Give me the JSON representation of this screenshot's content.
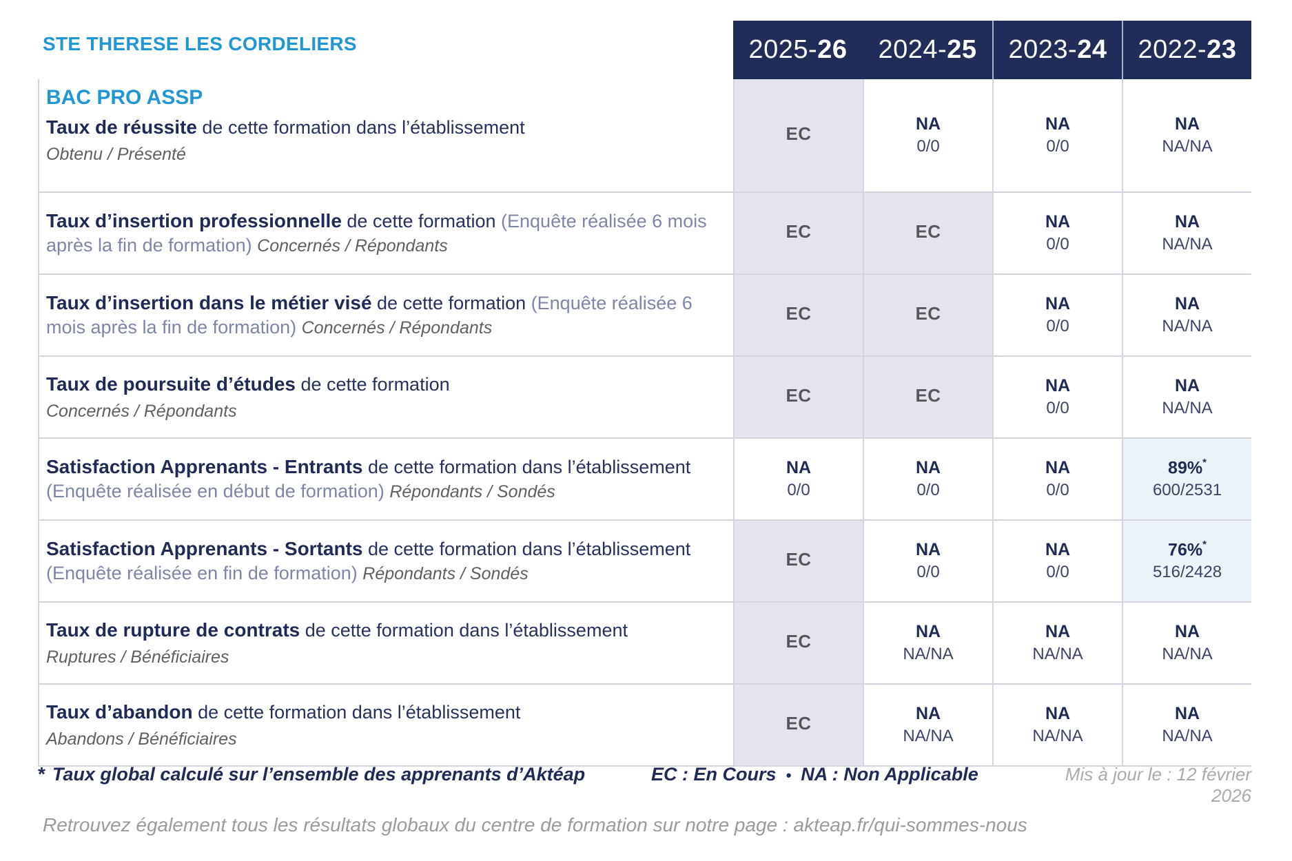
{
  "page": {
    "school_name": "STE THERESE LES CORDELIERS",
    "footnote_star": "*",
    "footnote": "Taux global calculé sur l’ensemble des apprenants d’Aktéap",
    "legend_ec": "EC : En Cours",
    "legend_bullet": "•",
    "legend_na": "NA : Non Applicable",
    "updated": "Mis à jour le : 12 février 2026",
    "footer": "Retrouvez également tous les résultats globaux du centre de formation sur notre page : akteap.fr/qui-sommes-nous"
  },
  "colors": {
    "accent_cyan": "#2196d5",
    "navy": "#1f2a56",
    "header_bg": "#222c58",
    "shaded_cell": "#e5e4ee",
    "pale_blue_cell": "#ebf3f9",
    "ec_text": "#57575a"
  },
  "table": {
    "program": "BAC PRO ASSP",
    "columns": [
      {
        "prefix": "2025-",
        "year": "26"
      },
      {
        "prefix": "2024-",
        "year": "25"
      },
      {
        "prefix": "2023-",
        "year": "24"
      },
      {
        "prefix": "2022-",
        "year": "23"
      }
    ],
    "rows": [
      {
        "title": "Taux de réussite",
        "desc": " de cette formation dans l’établissement",
        "sub": "Obtenu / Présenté",
        "cells": [
          {
            "value": "EC"
          },
          {
            "value": "NA",
            "detail": "0/0"
          },
          {
            "value": "NA",
            "detail": "0/0"
          },
          {
            "value": "NA",
            "detail": "NA/NA"
          }
        ]
      },
      {
        "title": "Taux d’insertion professionnelle",
        "desc": " de cette formation ",
        "paren": "(Enquête réalisée 6 mois après la fin de formation) ",
        "sub": "Concernés / Répondants",
        "cells": [
          {
            "value": "EC"
          },
          {
            "value": "EC"
          },
          {
            "value": "NA",
            "detail": "0/0"
          },
          {
            "value": "NA",
            "detail": "NA/NA"
          }
        ]
      },
      {
        "title": "Taux d’insertion dans le métier visé",
        "desc": " de cette formation ",
        "paren": "(Enquête réalisée 6 mois après la fin de formation) ",
        "sub": "Concernés / Répondants",
        "cells": [
          {
            "value": "EC"
          },
          {
            "value": "EC"
          },
          {
            "value": "NA",
            "detail": "0/0"
          },
          {
            "value": "NA",
            "detail": "NA/NA"
          }
        ]
      },
      {
        "title": "Taux de poursuite d’études",
        "desc": " de cette formation",
        "sub": "Concernés / Répondants",
        "cells": [
          {
            "value": "EC"
          },
          {
            "value": "EC"
          },
          {
            "value": "NA",
            "detail": "0/0"
          },
          {
            "value": "NA",
            "detail": "NA/NA"
          }
        ]
      },
      {
        "title": "Satisfaction Apprenants - Entrants",
        "desc": " de cette formation dans l’établissement ",
        "paren": "(Enquête réalisée en début de formation) ",
        "sub": "Répondants / Sondés",
        "cells": [
          {
            "value": "NA",
            "detail": "0/0"
          },
          {
            "value": "NA",
            "detail": "0/0"
          },
          {
            "value": "NA",
            "detail": "0/0"
          },
          {
            "value": "89%",
            "star": "*",
            "detail": "600/2531"
          }
        ]
      },
      {
        "title": "Satisfaction Apprenants - Sortants",
        "desc": " de cette formation dans l’établissement ",
        "paren": "(Enquête réalisée en fin de formation) ",
        "sub": "Répondants / Sondés",
        "cells": [
          {
            "value": "EC"
          },
          {
            "value": "NA",
            "detail": "0/0"
          },
          {
            "value": "NA",
            "detail": "0/0"
          },
          {
            "value": "76%",
            "star": "*",
            "detail": "516/2428"
          }
        ]
      },
      {
        "title": "Taux de rupture de contrats",
        "desc": " de cette formation dans l’établissement",
        "sub": "Ruptures / Bénéficiaires",
        "cells": [
          {
            "value": "EC"
          },
          {
            "value": "NA",
            "detail": "NA/NA"
          },
          {
            "value": "NA",
            "detail": "NA/NA"
          },
          {
            "value": "NA",
            "detail": "NA/NA"
          }
        ]
      },
      {
        "title": "Taux d’abandon",
        "desc": " de cette formation dans l’établissement",
        "sub": "Abandons / Bénéficiaires",
        "cells": [
          {
            "value": "EC"
          },
          {
            "value": "NA",
            "detail": "NA/NA"
          },
          {
            "value": "NA",
            "detail": "NA/NA"
          },
          {
            "value": "NA",
            "detail": "NA/NA"
          }
        ]
      }
    ]
  }
}
